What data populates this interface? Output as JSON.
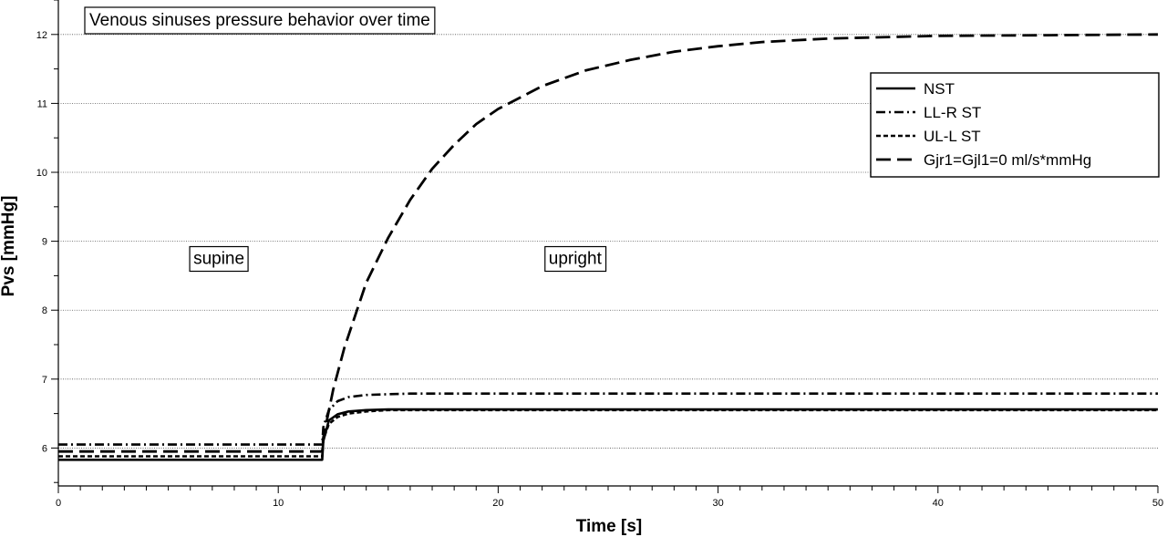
{
  "chart_data": {
    "type": "line",
    "title": "Venous sinuses pressure behavior over time",
    "xlabel": "Time [s]",
    "ylabel": "Pvs [mmHg]",
    "xlim": [
      0,
      50
    ],
    "ylim": [
      5.45,
      12.5
    ],
    "xticks": [
      0,
      10,
      20,
      30,
      40,
      50
    ],
    "yticks": [
      6,
      7,
      8,
      9,
      10,
      11,
      12
    ],
    "grid": "horizontal dotted",
    "legend_position": "top-right",
    "annotations": [
      {
        "text": "supine",
        "x": 7.3,
        "y": 8.75
      },
      {
        "text": "upright",
        "x": 23.5,
        "y": 8.75
      }
    ],
    "series": [
      {
        "name": "NST",
        "style": "solid",
        "x": [
          0,
          12,
          12.05,
          12.3,
          12.7,
          13.2,
          14,
          15,
          16,
          18,
          20,
          25,
          30,
          40,
          50
        ],
        "y": [
          5.83,
          5.83,
          6.1,
          6.4,
          6.49,
          6.53,
          6.55,
          6.56,
          6.56,
          6.56,
          6.56,
          6.56,
          6.56,
          6.56,
          6.56
        ]
      },
      {
        "name": "LL-R ST",
        "style": "dashdot",
        "x": [
          0,
          12,
          12.05,
          12.3,
          12.7,
          13.2,
          14,
          15,
          16,
          18,
          20,
          25,
          30,
          40,
          50
        ],
        "y": [
          6.05,
          6.05,
          6.3,
          6.55,
          6.68,
          6.74,
          6.77,
          6.78,
          6.79,
          6.79,
          6.79,
          6.79,
          6.79,
          6.79,
          6.79
        ]
      },
      {
        "name": "UL-L ST",
        "style": "dotted",
        "x": [
          0,
          12,
          12.05,
          12.3,
          12.7,
          13.2,
          14,
          15,
          16,
          18,
          20,
          25,
          30,
          40,
          50
        ],
        "y": [
          5.88,
          5.88,
          6.12,
          6.35,
          6.45,
          6.5,
          6.53,
          6.55,
          6.55,
          6.55,
          6.55,
          6.55,
          6.55,
          6.55,
          6.55
        ]
      },
      {
        "name": "Gjr1=Gjl1=0 ml/s*mmHg",
        "style": "dashed",
        "x": [
          0,
          12,
          12.05,
          12.5,
          13,
          14,
          15,
          16,
          17,
          18,
          19,
          20,
          22,
          24,
          26,
          28,
          30,
          32,
          35,
          40,
          45,
          50
        ],
        "y": [
          5.95,
          5.95,
          6.15,
          6.85,
          7.45,
          8.4,
          9.05,
          9.6,
          10.05,
          10.4,
          10.7,
          10.92,
          11.25,
          11.48,
          11.63,
          11.75,
          11.83,
          11.89,
          11.94,
          11.98,
          11.99,
          12.0
        ]
      }
    ]
  }
}
